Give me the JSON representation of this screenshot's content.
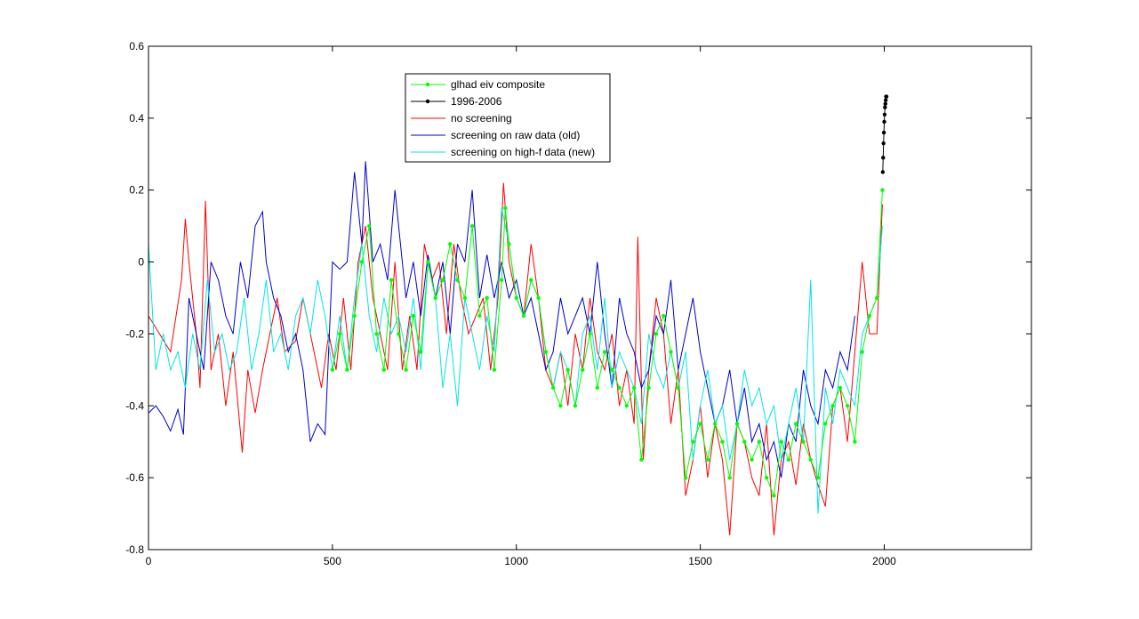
{
  "chart_data": {
    "type": "line",
    "title": "",
    "xlabel": "",
    "ylabel": "",
    "xlim": [
      0,
      2400
    ],
    "ylim": [
      -0.8,
      0.6
    ],
    "x_ticks": [
      "0",
      "500",
      "1000",
      "1500",
      "2000"
    ],
    "y_ticks": [
      "-0.8",
      "-0.6",
      "-0.4",
      "-0.2",
      "0",
      "0.2",
      "0.4",
      "0.6"
    ],
    "grid": false,
    "legend_position": "top-center",
    "series": [
      {
        "name": "no screening",
        "color": "#ff0000",
        "marker": "none",
        "x": [
          0,
          30,
          60,
          90,
          100,
          110,
          130,
          140,
          155,
          170,
          190,
          210,
          230,
          255,
          270,
          290,
          310,
          330,
          350,
          370,
          400,
          420,
          450,
          470,
          490,
          510,
          530,
          550,
          570,
          590,
          610,
          630,
          650,
          670,
          690,
          710,
          730,
          750,
          770,
          790,
          810,
          830,
          850,
          870,
          890,
          910,
          930,
          950,
          965,
          980,
          1000,
          1020,
          1040,
          1060,
          1080,
          1100,
          1120,
          1140,
          1160,
          1180,
          1200,
          1220,
          1240,
          1260,
          1280,
          1300,
          1320,
          1330,
          1345,
          1360,
          1380,
          1400,
          1420,
          1440,
          1460,
          1480,
          1500,
          1520,
          1540,
          1560,
          1580,
          1600,
          1620,
          1640,
          1660,
          1680,
          1700,
          1720,
          1740,
          1760,
          1780,
          1800,
          1820,
          1840,
          1860,
          1880,
          1900,
          1920,
          1940,
          1960,
          1980,
          1995
        ],
        "y": [
          -0.15,
          -0.2,
          -0.25,
          -0.05,
          0.12,
          0.0,
          -0.2,
          -0.35,
          0.17,
          -0.3,
          -0.2,
          -0.4,
          -0.25,
          -0.53,
          -0.3,
          -0.42,
          -0.3,
          -0.2,
          -0.1,
          -0.25,
          -0.22,
          -0.1,
          -0.25,
          -0.35,
          -0.2,
          -0.3,
          -0.1,
          -0.3,
          0.0,
          0.1,
          -0.1,
          -0.2,
          -0.3,
          0.0,
          -0.3,
          -0.15,
          -0.3,
          0.05,
          -0.05,
          0.0,
          -0.2,
          0.05,
          -0.1,
          -0.2,
          -0.15,
          -0.1,
          -0.3,
          -0.1,
          0.22,
          0.0,
          -0.1,
          -0.15,
          0.05,
          -0.1,
          -0.3,
          -0.35,
          -0.25,
          -0.4,
          -0.2,
          -0.3,
          -0.1,
          -0.25,
          -0.3,
          -0.2,
          -0.4,
          -0.3,
          -0.45,
          0.07,
          -0.55,
          -0.3,
          -0.1,
          -0.2,
          -0.45,
          -0.3,
          -0.65,
          -0.55,
          -0.4,
          -0.6,
          -0.45,
          -0.55,
          -0.76,
          -0.45,
          -0.5,
          -0.6,
          -0.65,
          -0.45,
          -0.76,
          -0.55,
          -0.5,
          -0.62,
          -0.45,
          -0.55,
          -0.62,
          -0.68,
          -0.4,
          -0.35,
          -0.5,
          -0.25,
          0.0,
          -0.2,
          -0.2,
          0.16
        ]
      },
      {
        "name": "screening on raw data  (old)",
        "color": "#0000cc",
        "marker": "none",
        "x": [
          0,
          20,
          40,
          60,
          80,
          95,
          110,
          130,
          150,
          170,
          190,
          210,
          230,
          250,
          270,
          290,
          310,
          320,
          340,
          360,
          380,
          400,
          420,
          440,
          460,
          480,
          500,
          520,
          540,
          560,
          580,
          590,
          610,
          630,
          650,
          670,
          700,
          720,
          740,
          760,
          780,
          800,
          820,
          840,
          860,
          880,
          900,
          920,
          940,
          960,
          980,
          1000,
          1020,
          1040,
          1060,
          1080,
          1100,
          1120,
          1140,
          1160,
          1180,
          1200,
          1220,
          1240,
          1260,
          1280,
          1300,
          1320,
          1340,
          1360,
          1380,
          1400,
          1420,
          1440,
          1460,
          1480,
          1500,
          1520,
          1540,
          1560,
          1580,
          1600,
          1620,
          1640,
          1660,
          1680,
          1700,
          1720,
          1740,
          1760,
          1780,
          1800,
          1820,
          1840,
          1860,
          1880,
          1900,
          1920
        ],
        "y": [
          -0.42,
          -0.4,
          -0.43,
          -0.47,
          -0.41,
          -0.48,
          -0.1,
          -0.2,
          -0.3,
          0.0,
          -0.05,
          -0.15,
          -0.2,
          0.0,
          -0.1,
          0.1,
          0.14,
          0.0,
          -0.1,
          -0.15,
          -0.25,
          -0.2,
          -0.3,
          -0.5,
          -0.45,
          -0.48,
          0.0,
          -0.02,
          0.0,
          0.25,
          0.05,
          0.28,
          0.0,
          0.05,
          -0.05,
          0.2,
          -0.1,
          0.0,
          -0.15,
          0.02,
          -0.1,
          0.0,
          -0.2,
          0.05,
          0.0,
          0.2,
          -0.1,
          0.02,
          -0.1,
          0.0,
          -0.1,
          -0.05,
          -0.15,
          -0.1,
          -0.2,
          -0.3,
          -0.25,
          -0.1,
          -0.2,
          -0.15,
          -0.1,
          -0.2,
          0.0,
          -0.2,
          -0.35,
          -0.1,
          -0.2,
          -0.25,
          -0.35,
          -0.3,
          -0.15,
          -0.2,
          -0.05,
          -0.3,
          -0.2,
          -0.1,
          -0.25,
          -0.35,
          -0.45,
          -0.4,
          -0.3,
          -0.45,
          -0.35,
          -0.5,
          -0.45,
          -0.55,
          -0.5,
          -0.6,
          -0.45,
          -0.5,
          -0.3,
          -0.4,
          -0.45,
          -0.3,
          -0.35,
          -0.25,
          -0.3,
          -0.15
        ]
      },
      {
        "name": "screening on high-f data (new)",
        "color": "#00e5e5",
        "marker": "none",
        "x": [
          0,
          20,
          40,
          60,
          80,
          100,
          120,
          140,
          160,
          180,
          200,
          220,
          240,
          260,
          280,
          300,
          320,
          340,
          360,
          380,
          400,
          420,
          440,
          460,
          480,
          500,
          520,
          540,
          560,
          580,
          600,
          620,
          640,
          660,
          680,
          700,
          720,
          740,
          760,
          780,
          800,
          820,
          840,
          860,
          880,
          900,
          920,
          940,
          960,
          980,
          1000,
          1020,
          1040,
          1060,
          1080,
          1100,
          1120,
          1140,
          1160,
          1180,
          1200,
          1220,
          1240,
          1260,
          1280,
          1300,
          1320,
          1340,
          1360,
          1380,
          1400,
          1420,
          1440,
          1460,
          1480,
          1500,
          1520,
          1540,
          1560,
          1580,
          1600,
          1620,
          1640,
          1660,
          1680,
          1700,
          1720,
          1740,
          1760,
          1780,
          1800,
          1820,
          1840,
          1860,
          1880,
          1900,
          1920,
          1940,
          1960,
          1980,
          1995
        ],
        "y": [
          0.05,
          -0.3,
          -0.2,
          -0.3,
          -0.25,
          -0.35,
          -0.2,
          -0.3,
          -0.05,
          -0.25,
          -0.2,
          -0.3,
          -0.25,
          -0.1,
          -0.3,
          -0.2,
          -0.05,
          -0.25,
          -0.2,
          -0.3,
          -0.15,
          -0.1,
          -0.2,
          -0.05,
          -0.15,
          -0.3,
          -0.15,
          -0.3,
          -0.1,
          0.05,
          -0.15,
          -0.25,
          -0.1,
          -0.2,
          -0.15,
          -0.25,
          -0.1,
          -0.3,
          0.0,
          -0.1,
          -0.35,
          -0.2,
          -0.4,
          -0.1,
          -0.2,
          -0.3,
          -0.15,
          -0.25,
          0.15,
          0.05,
          -0.1,
          -0.15,
          -0.05,
          -0.1,
          -0.25,
          -0.35,
          -0.25,
          -0.3,
          -0.4,
          -0.2,
          -0.15,
          -0.3,
          -0.1,
          -0.35,
          -0.25,
          -0.3,
          -0.35,
          -0.45,
          -0.2,
          -0.3,
          -0.35,
          -0.25,
          -0.35,
          -0.25,
          -0.55,
          -0.4,
          -0.3,
          -0.45,
          -0.4,
          -0.55,
          -0.45,
          -0.3,
          -0.4,
          -0.35,
          -0.45,
          -0.4,
          -0.55,
          -0.45,
          -0.35,
          -0.5,
          -0.05,
          -0.7,
          -0.35,
          -0.45,
          -0.3,
          -0.35,
          -0.4,
          -0.2,
          -0.15,
          -0.1,
          0.1
        ]
      },
      {
        "name": "glhad eiv composite",
        "color": "#00ff00",
        "marker": "dot",
        "x": [
          500,
          520,
          540,
          560,
          580,
          600,
          620,
          640,
          660,
          680,
          700,
          720,
          740,
          760,
          780,
          800,
          820,
          840,
          860,
          880,
          900,
          920,
          940,
          960,
          970,
          980,
          1000,
          1020,
          1040,
          1060,
          1080,
          1100,
          1120,
          1140,
          1160,
          1180,
          1200,
          1220,
          1240,
          1260,
          1280,
          1300,
          1320,
          1340,
          1360,
          1380,
          1400,
          1420,
          1440,
          1460,
          1480,
          1500,
          1520,
          1540,
          1560,
          1580,
          1600,
          1620,
          1640,
          1660,
          1680,
          1700,
          1720,
          1740,
          1760,
          1780,
          1800,
          1820,
          1840,
          1860,
          1880,
          1900,
          1920,
          1940,
          1960,
          1980,
          1995
        ],
        "y": [
          -0.3,
          -0.2,
          -0.3,
          -0.15,
          0.0,
          0.1,
          -0.2,
          -0.3,
          -0.05,
          -0.2,
          -0.3,
          -0.15,
          -0.25,
          0.0,
          -0.1,
          -0.05,
          0.05,
          -0.05,
          -0.1,
          0.1,
          -0.15,
          -0.1,
          -0.3,
          -0.05,
          0.15,
          0.05,
          -0.1,
          -0.15,
          -0.05,
          -0.1,
          -0.25,
          -0.35,
          -0.4,
          -0.3,
          -0.4,
          -0.3,
          -0.2,
          -0.35,
          -0.25,
          -0.3,
          -0.35,
          -0.4,
          -0.35,
          -0.55,
          -0.35,
          -0.2,
          -0.15,
          -0.25,
          -0.35,
          -0.6,
          -0.5,
          -0.45,
          -0.55,
          -0.45,
          -0.5,
          -0.6,
          -0.45,
          -0.5,
          -0.55,
          -0.5,
          -0.6,
          -0.65,
          -0.5,
          -0.55,
          -0.45,
          -0.5,
          -0.55,
          -0.6,
          -0.45,
          -0.4,
          -0.35,
          -0.4,
          -0.5,
          -0.25,
          -0.15,
          -0.1,
          0.2
        ]
      },
      {
        "name": "1996-2006",
        "color": "#000000",
        "marker": "dot",
        "x": [
          1996,
          1997,
          1998,
          1999,
          2000,
          2001,
          2002,
          2003,
          2004,
          2005,
          2006
        ],
        "y": [
          0.25,
          0.29,
          0.33,
          0.36,
          0.39,
          0.41,
          0.43,
          0.44,
          0.45,
          0.46,
          0.46
        ]
      }
    ],
    "legend_entries": [
      "glhad eiv composite",
      "1996-2006",
      "no screening",
      "screening on raw data  (old)",
      "screening on high-f data (new)"
    ]
  }
}
